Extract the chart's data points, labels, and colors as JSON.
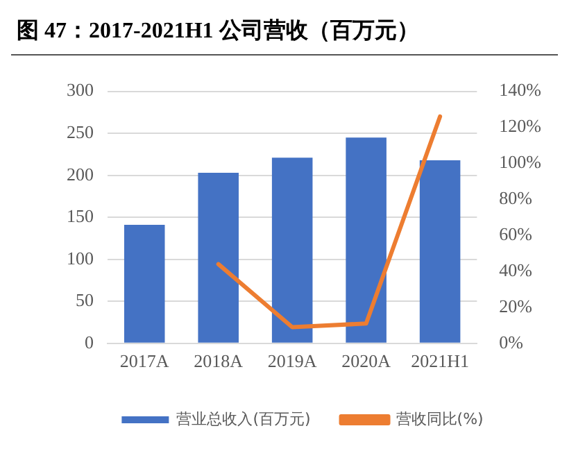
{
  "chart_data": {
    "type": "bar",
    "title": "图 47：2017-2021H1 公司营收（百万元）",
    "categories": [
      "2017A",
      "2018A",
      "2019A",
      "2020A",
      "2021H1"
    ],
    "series": [
      {
        "name": "营业总收入(百万元)",
        "color": "#4472c4",
        "values": [
          141,
          203,
          221,
          245,
          218
        ]
      },
      {
        "name": "营收同比(%)",
        "type": "line",
        "axis": "y2",
        "color": "#ed7d31",
        "values": [
          null,
          44,
          9,
          11,
          126
        ]
      }
    ],
    "ylim": [
      0,
      300
    ],
    "yticks": [
      0,
      50,
      100,
      150,
      200,
      250,
      300
    ],
    "y2lim": [
      0,
      140
    ],
    "y2ticks": [
      {
        "value": 0,
        "label": "0%"
      },
      {
        "value": 20,
        "label": "20%"
      },
      {
        "value": 40,
        "label": "40%"
      },
      {
        "value": 60,
        "label": "60%"
      },
      {
        "value": 80,
        "label": "80%"
      },
      {
        "value": 100,
        "label": "100%"
      },
      {
        "value": 120,
        "label": "120%"
      },
      {
        "value": 140,
        "label": "140%"
      }
    ],
    "grid": "y",
    "legend": "bottom",
    "marker": "none",
    "line_style": "solid"
  }
}
